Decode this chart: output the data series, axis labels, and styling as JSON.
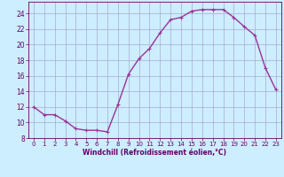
{
  "x": [
    0,
    1,
    2,
    3,
    4,
    5,
    6,
    7,
    8,
    9,
    10,
    11,
    12,
    13,
    14,
    15,
    16,
    17,
    18,
    19,
    20,
    21,
    22,
    23
  ],
  "y": [
    12,
    11,
    11,
    10.2,
    9.2,
    9,
    9,
    8.8,
    12.3,
    16.2,
    18.2,
    19.5,
    21.5,
    23.2,
    23.5,
    24.3,
    24.5,
    24.5,
    24.5,
    23.5,
    22.3,
    21.2,
    17.0,
    14.2
  ],
  "line_color": "#993399",
  "marker": "+",
  "marker_size": 3,
  "bg_color": "#cceeff",
  "grid_color": "#aaaacc",
  "xlabel": "Windchill (Refroidissement éolien,°C)",
  "xlabel_color": "#660066",
  "tick_color": "#660066",
  "xlim": [
    -0.5,
    23.5
  ],
  "ylim": [
    8,
    25.5
  ],
  "yticks": [
    8,
    10,
    12,
    14,
    16,
    18,
    20,
    22,
    24
  ],
  "xticks": [
    0,
    1,
    2,
    3,
    4,
    5,
    6,
    7,
    8,
    9,
    10,
    11,
    12,
    13,
    14,
    15,
    16,
    17,
    18,
    19,
    20,
    21,
    22,
    23
  ],
  "line_width": 1.0,
  "tick_fontsize": 5.0,
  "xlabel_fontsize": 5.5
}
